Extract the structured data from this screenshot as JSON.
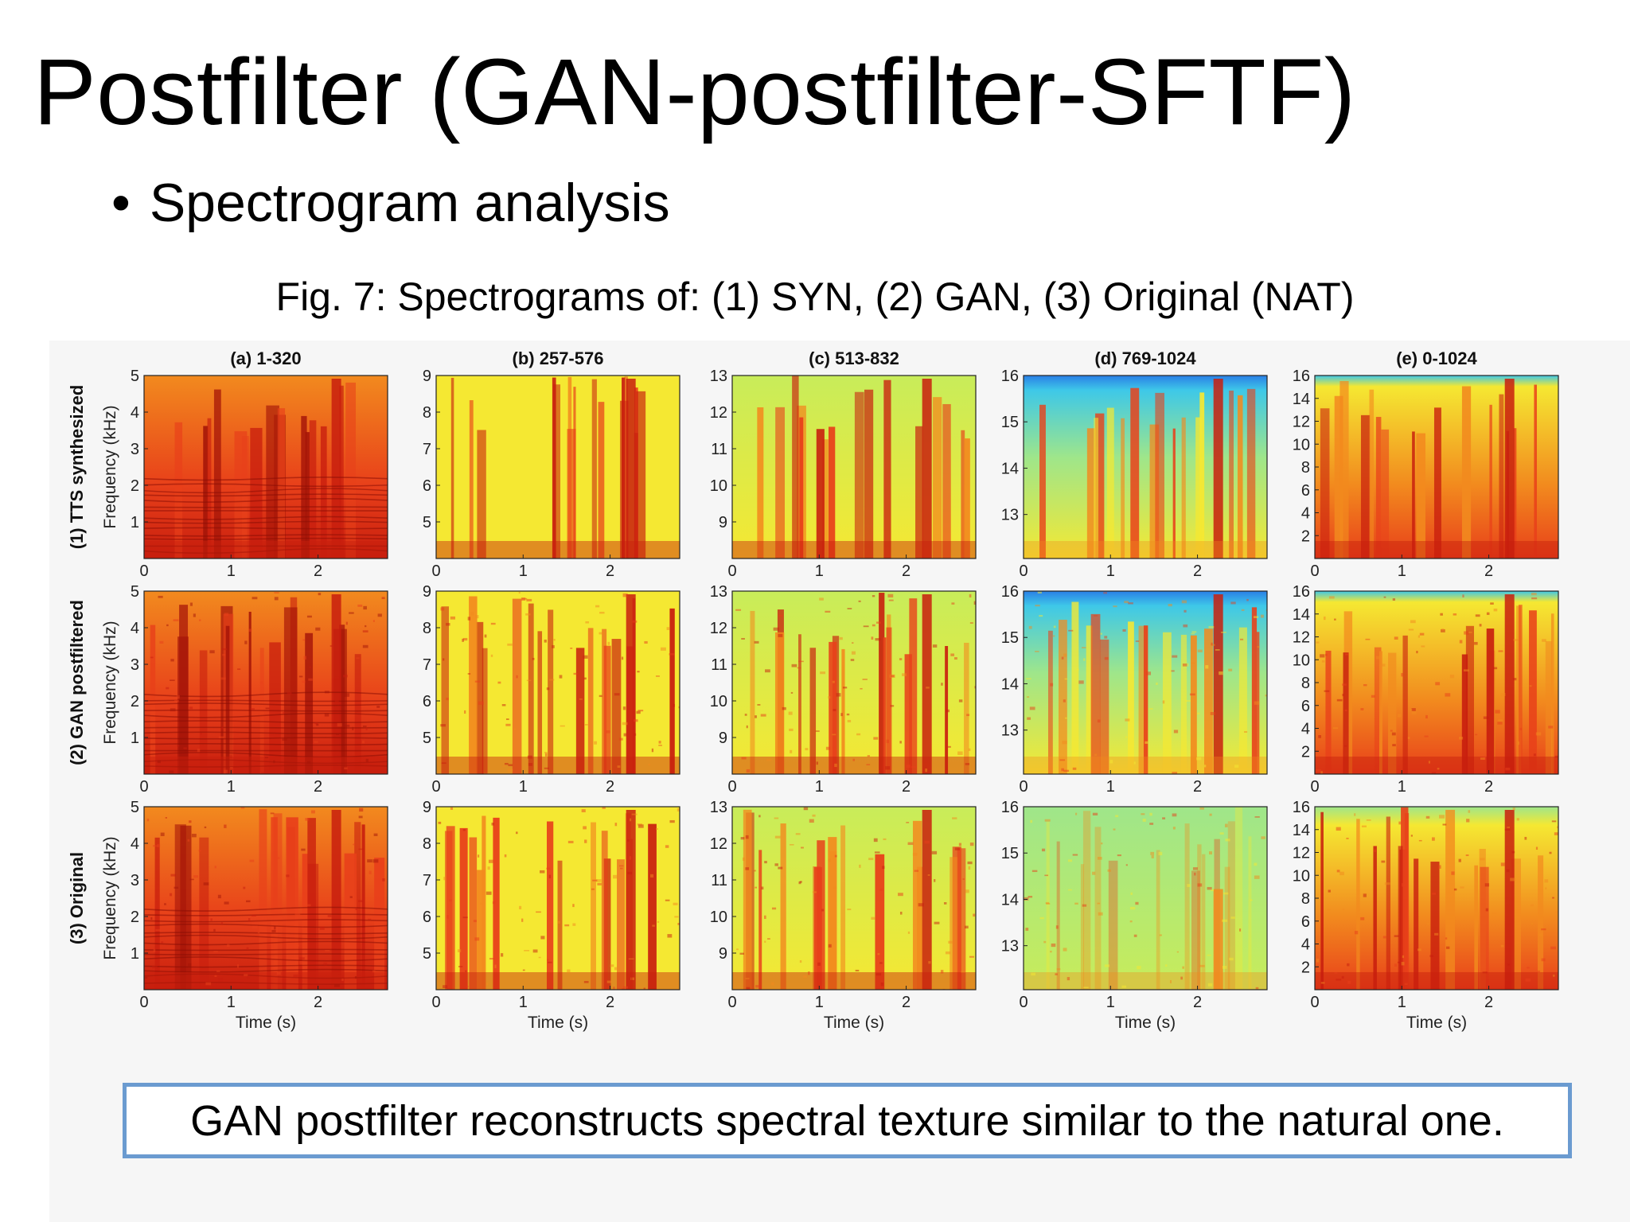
{
  "slide": {
    "title": "Postfilter (GAN-postfilter-SFTF)",
    "bullet": "Spectrogram analysis",
    "bullet_marker": "•",
    "caption": "Fig. 7: Spectrograms of: (1) SYN, (2) GAN, (3) Original (NAT)",
    "note": "GAN postfilter reconstructs spectral texture similar to the natural one.",
    "note_border_color": "#6b9bd0"
  },
  "figure": {
    "columns": [
      {
        "title": "(a) 1-320",
        "yticks": [
          "1",
          "2",
          "3",
          "4",
          "5"
        ],
        "ymin": 0,
        "ymax": 5
      },
      {
        "title": "(b) 257-576",
        "yticks": [
          "5",
          "6",
          "7",
          "8",
          "9"
        ],
        "ymin": 4,
        "ymax": 9
      },
      {
        "title": "(c) 513-832",
        "yticks": [
          "9",
          "10",
          "11",
          "12",
          "13"
        ],
        "ymin": 8,
        "ymax": 13
      },
      {
        "title": "(d) 769-1024",
        "yticks": [
          "13",
          "14",
          "15",
          "16"
        ],
        "ymin": 12.05,
        "ymax": 16
      },
      {
        "title": "(e) 0-1024",
        "yticks": [
          "2",
          "4",
          "6",
          "8",
          "10",
          "12",
          "14",
          "16"
        ],
        "ymin": 0,
        "ymax": 16
      }
    ],
    "rows": [
      {
        "label": "(1) TTS synthesized",
        "ylabel": "Frequency (kHz)"
      },
      {
        "label": "(2) GAN postfiltered",
        "ylabel": "Frequency (kHz)"
      },
      {
        "label": "(3) Original",
        "ylabel": "Frequency (kHz)"
      }
    ],
    "xticks": [
      "0",
      "1",
      "2"
    ],
    "xmax": 2.8,
    "xlabel": "Time (s)",
    "colormap": "jet",
    "colors": {
      "deep_red": "#c81e0e",
      "red": "#e8401a",
      "orange": "#f28a1e",
      "yellow": "#f5e832",
      "green_yellow": "#c8ec5a",
      "light_green": "#9fe68a",
      "cyan": "#3ec8e8",
      "blue": "#2a7fe6"
    }
  }
}
